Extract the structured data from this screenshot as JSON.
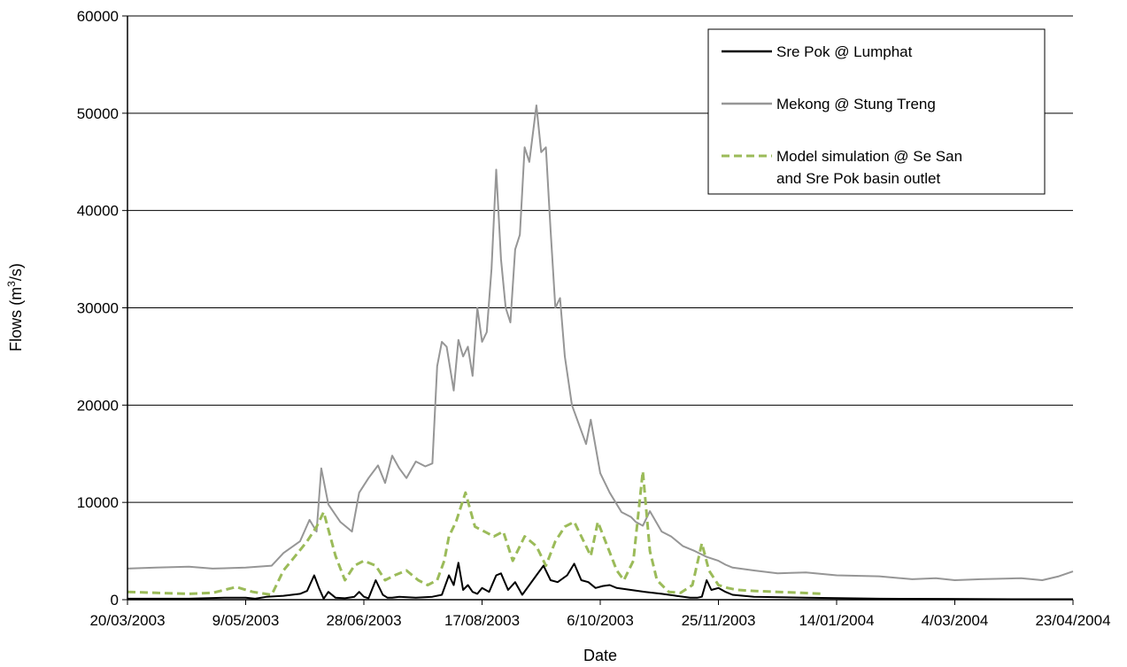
{
  "chart_data": {
    "type": "line",
    "xlabel": "Date",
    "ylabel": "Flows (m³/s)",
    "ylabel_parts": {
      "main": "Flows (m",
      "sup": "3",
      "tail": "/s)"
    },
    "ylim": [
      0,
      60000
    ],
    "yticks": [
      0,
      10000,
      20000,
      30000,
      40000,
      50000,
      60000
    ],
    "ytick_labels": [
      "0",
      "10000",
      "20000",
      "30000",
      "40000",
      "50000",
      "60000"
    ],
    "xlim": [
      "20/03/2003",
      "23/04/2004"
    ],
    "xticks": [
      "20/03/2003",
      "9/05/2003",
      "28/06/2003",
      "17/08/2003",
      "6/10/2003",
      "25/11/2003",
      "14/01/2004",
      "4/03/2004",
      "23/04/2004"
    ],
    "grid": {
      "horizontal": true,
      "vertical": false
    },
    "legend": {
      "placement": "top-right",
      "entries": [
        {
          "label_lines": [
            "Sre Pok  @ Lumphat"
          ],
          "series": "Sre Pok @ Lumphat"
        },
        {
          "label_lines": [
            "Mekong @ Stung Treng"
          ],
          "series": "Mekong @ Stung Treng"
        },
        {
          "label_lines": [
            "Model simulation @ Se San",
            "and Sre Pok basin outlet"
          ],
          "series": "Model simulation @ Se San and Sre Pok basin outlet"
        }
      ]
    },
    "series": [
      {
        "name": "Mekong @ Stung Treng",
        "color": "#969696",
        "dash": "solid",
        "x": [
          "20/03/2003",
          "01/04/2003",
          "15/04/2003",
          "25/04/2003",
          "09/05/2003",
          "20/05/2003",
          "25/05/2003",
          "01/06/2003",
          "05/06/2003",
          "08/06/2003",
          "10/06/2003",
          "13/06/2003",
          "18/06/2003",
          "23/06/2003",
          "26/06/2003",
          "30/06/2003",
          "04/07/2003",
          "07/07/2003",
          "10/07/2003",
          "13/07/2003",
          "16/07/2003",
          "20/07/2003",
          "24/07/2003",
          "27/07/2003",
          "29/07/2003",
          "31/07/2003",
          "02/08/2003",
          "05/08/2003",
          "07/08/2003",
          "09/08/2003",
          "11/08/2003",
          "13/08/2003",
          "15/08/2003",
          "17/08/2003",
          "19/08/2003",
          "21/08/2003",
          "23/08/2003",
          "25/08/2003",
          "27/08/2003",
          "29/08/2003",
          "31/08/2003",
          "02/09/2003",
          "04/09/2003",
          "06/09/2003",
          "09/09/2003",
          "11/09/2003",
          "13/09/2003",
          "15/09/2003",
          "17/09/2003",
          "19/09/2003",
          "21/09/2003",
          "24/09/2003",
          "27/09/2003",
          "30/09/2003",
          "02/10/2003",
          "06/10/2003",
          "10/10/2003",
          "15/10/2003",
          "19/10/2003",
          "21/10/2003",
          "24/10/2003",
          "27/10/2003",
          "01/11/2003",
          "05/11/2003",
          "10/11/2003",
          "15/11/2003",
          "20/11/2003",
          "25/11/2003",
          "28/11/2003",
          "01/12/2003",
          "10/12/2003",
          "20/12/2003",
          "01/01/2004",
          "14/01/2004",
          "01/02/2004",
          "15/02/2004",
          "25/02/2004",
          "04/03/2004",
          "15/03/2004",
          "01/04/2004",
          "10/04/2004",
          "17/04/2004",
          "23/04/2004"
        ],
        "y": [
          3200,
          3300,
          3400,
          3200,
          3300,
          3500,
          4800,
          6000,
          8200,
          7000,
          13500,
          9800,
          8000,
          7000,
          11000,
          12500,
          13800,
          12000,
          14800,
          13500,
          12500,
          14200,
          13700,
          14000,
          24000,
          26500,
          26000,
          21500,
          26700,
          25000,
          26000,
          23000,
          30000,
          26500,
          27500,
          34000,
          44200,
          35000,
          30000,
          28500,
          36000,
          37500,
          46500,
          45000,
          50800,
          46000,
          46500,
          38000,
          30000,
          31000,
          25000,
          20000,
          18000,
          16000,
          18500,
          13000,
          11000,
          9000,
          8500,
          8000,
          7600,
          9100,
          7000,
          6500,
          5500,
          5000,
          4400,
          4000,
          3600,
          3300,
          3000,
          2700,
          2800,
          2500,
          2400,
          2100,
          2200,
          2000,
          2100,
          2200,
          2000,
          2400,
          2900
        ]
      },
      {
        "name": "Model simulation @ Se San and Sre Pok basin outlet",
        "color": "#9bbb59",
        "dash": "dashed",
        "x": [
          "20/03/2003",
          "01/04/2003",
          "15/04/2003",
          "25/04/2003",
          "05/05/2003",
          "12/05/2003",
          "20/05/2003",
          "25/05/2003",
          "30/05/2003",
          "04/06/2003",
          "08/06/2003",
          "11/06/2003",
          "16/06/2003",
          "20/06/2003",
          "24/06/2003",
          "28/06/2003",
          "03/07/2003",
          "07/07/2003",
          "11/07/2003",
          "16/07/2003",
          "21/07/2003",
          "25/07/2003",
          "29/07/2003",
          "01/08/2003",
          "03/08/2003",
          "06/08/2003",
          "10/08/2003",
          "14/08/2003",
          "18/08/2003",
          "22/08/2003",
          "26/08/2003",
          "30/08/2003",
          "04/09/2003",
          "09/09/2003",
          "13/09/2003",
          "17/09/2003",
          "21/09/2003",
          "25/09/2003",
          "29/09/2003",
          "02/10/2003",
          "05/10/2003",
          "09/10/2003",
          "13/10/2003",
          "16/10/2003",
          "20/10/2003",
          "24/10/2003",
          "27/10/2003",
          "30/10/2003",
          "04/11/2003",
          "09/11/2003",
          "14/11/2003",
          "18/11/2003",
          "21/11/2003",
          "25/11/2003",
          "29/11/2003",
          "03/12/2003",
          "10/12/2003",
          "20/12/2003",
          "30/12/2003",
          "08/01/2004"
        ],
        "y": [
          800,
          700,
          600,
          700,
          1300,
          800,
          500,
          3000,
          4500,
          6000,
          7500,
          9000,
          4500,
          2000,
          3500,
          4000,
          3500,
          2000,
          2500,
          3000,
          2000,
          1500,
          2000,
          4000,
          6500,
          8000,
          11000,
          7500,
          7000,
          6500,
          7000,
          4000,
          6500,
          5500,
          3500,
          6000,
          7500,
          8000,
          6000,
          4500,
          8000,
          5500,
          3000,
          2000,
          4000,
          13200,
          5000,
          2000,
          800,
          700,
          1500,
          5800,
          3000,
          1500,
          1200,
          1000,
          900,
          800,
          700,
          600
        ]
      },
      {
        "name": "Sre Pok @ Lumphat",
        "color": "#000000",
        "dash": "solid",
        "x": [
          "20/03/2003",
          "15/04/2003",
          "30/04/2003",
          "09/05/2003",
          "13/05/2003",
          "18/05/2003",
          "25/05/2003",
          "01/06/2003",
          "04/06/2003",
          "07/06/2003",
          "09/06/2003",
          "11/06/2003",
          "13/06/2003",
          "16/06/2003",
          "20/06/2003",
          "24/06/2003",
          "26/06/2003",
          "28/06/2003",
          "30/06/2003",
          "03/07/2003",
          "06/07/2003",
          "08/07/2003",
          "10/07/2003",
          "13/07/2003",
          "20/07/2003",
          "27/07/2003",
          "31/07/2003",
          "03/08/2003",
          "05/08/2003",
          "07/08/2003",
          "09/08/2003",
          "11/08/2003",
          "13/08/2003",
          "15/08/2003",
          "17/08/2003",
          "20/08/2003",
          "23/08/2003",
          "25/08/2003",
          "28/08/2003",
          "31/08/2003",
          "03/09/2003",
          "06/09/2003",
          "09/09/2003",
          "12/09/2003",
          "15/09/2003",
          "18/09/2003",
          "22/09/2003",
          "25/09/2003",
          "28/09/2003",
          "01/10/2003",
          "04/10/2003",
          "07/10/2003",
          "10/10/2003",
          "13/10/2003",
          "16/10/2003",
          "19/10/2003",
          "25/10/2003",
          "01/11/2003",
          "07/11/2003",
          "13/11/2003",
          "16/11/2003",
          "18/11/2003",
          "20/11/2003",
          "22/11/2003",
          "25/11/2003",
          "28/11/2003",
          "01/12/2003",
          "10/12/2003",
          "01/01/2004",
          "01/02/2004",
          "01/03/2004",
          "01/04/2004",
          "23/04/2004"
        ],
        "y": [
          100,
          100,
          200,
          200,
          100,
          300,
          400,
          600,
          900,
          2500,
          1200,
          100,
          800,
          200,
          150,
          300,
          800,
          300,
          150,
          2000,
          500,
          200,
          200,
          300,
          200,
          300,
          500,
          2500,
          1500,
          3800,
          1000,
          1500,
          800,
          600,
          1200,
          800,
          2500,
          2700,
          1000,
          1800,
          500,
          1500,
          2500,
          3500,
          2000,
          1800,
          2500,
          3700,
          2000,
          1800,
          1200,
          1400,
          1500,
          1200,
          1100,
          1000,
          800,
          600,
          400,
          200,
          200,
          300,
          2000,
          1000,
          1200,
          800,
          500,
          300,
          200,
          100,
          80,
          50,
          50
        ]
      }
    ]
  }
}
